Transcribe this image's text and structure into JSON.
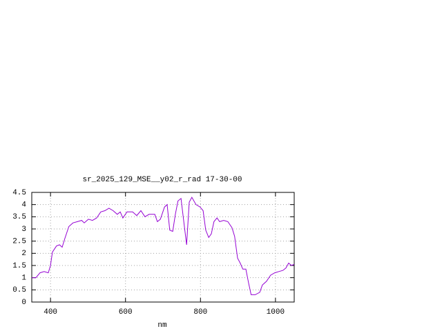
{
  "chart_data": {
    "type": "line",
    "title": "sr_2025_129_MSE__y02_r_rad 17-30-00",
    "x_label": "nm",
    "xlim": [
      350,
      1050
    ],
    "xticks": [
      400,
      600,
      800,
      1000
    ],
    "ylim": [
      0,
      4.5
    ],
    "yticks": [
      0,
      0.5,
      1,
      1.5,
      2,
      2.5,
      3,
      3.5,
      4,
      4.5
    ],
    "grid": true,
    "series": [
      {
        "color": "#9400d3",
        "x": [
          350,
          361,
          372,
          383,
          394,
          400,
          405,
          416,
          424,
          431,
          438,
          449,
          460,
          472,
          483,
          490,
          501,
          512,
          523,
          534,
          545,
          556,
          567,
          578,
          586,
          593,
          604,
          619,
          630,
          641,
          652,
          663,
          678,
          685,
          693,
          704,
          711,
          718,
          726,
          733,
          740,
          748,
          755,
          763,
          770,
          777,
          788,
          799,
          807,
          814,
          822,
          829,
          836,
          844,
          851,
          862,
          873,
          884,
          891,
          899,
          906,
          913,
          921,
          928,
          935,
          946,
          958,
          965,
          976,
          987,
          998,
          1009,
          1020,
          1028,
          1035,
          1043,
          1050
        ],
        "values": [
          1.0,
          1.0,
          1.2,
          1.25,
          1.2,
          1.5,
          2.05,
          2.3,
          2.35,
          2.25,
          2.6,
          3.1,
          3.25,
          3.3,
          3.35,
          3.25,
          3.4,
          3.35,
          3.45,
          3.7,
          3.75,
          3.85,
          3.75,
          3.6,
          3.7,
          3.45,
          3.7,
          3.7,
          3.55,
          3.75,
          3.5,
          3.6,
          3.6,
          3.3,
          3.4,
          3.9,
          4.0,
          2.95,
          2.9,
          3.6,
          4.15,
          4.25,
          3.35,
          2.35,
          4.1,
          4.3,
          4.0,
          3.9,
          3.75,
          2.95,
          2.65,
          2.8,
          3.3,
          3.45,
          3.3,
          3.35,
          3.3,
          3.05,
          2.7,
          1.8,
          1.6,
          1.35,
          1.35,
          0.8,
          0.3,
          0.3,
          0.4,
          0.7,
          0.85,
          1.1,
          1.2,
          1.25,
          1.3,
          1.4,
          1.6,
          1.5,
          1.55
        ]
      }
    ]
  }
}
